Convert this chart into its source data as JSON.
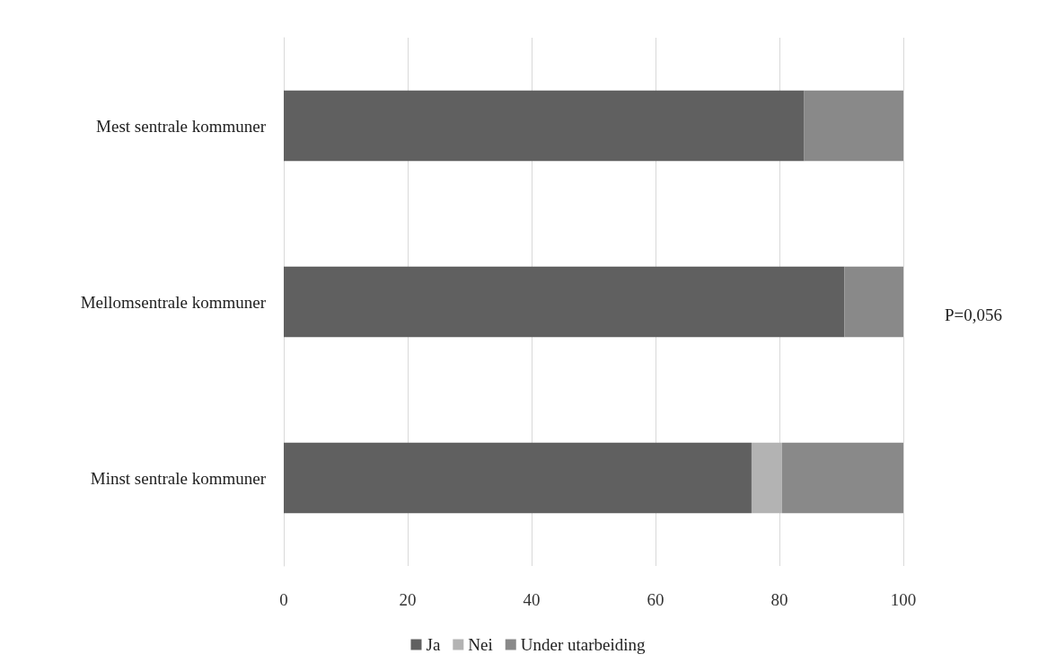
{
  "chart_data": {
    "type": "bar",
    "orientation": "horizontal",
    "stacked": true,
    "categories": [
      "Mest sentrale kommuner",
      "Mellomsentrale kommuner",
      "Minst sentrale kommuner"
    ],
    "series": [
      {
        "name": "Ja",
        "color": "#606060",
        "values": [
          84,
          90.5,
          75.5
        ]
      },
      {
        "name": "Nei",
        "color": "#b3b3b3",
        "values": [
          0,
          0,
          4.9
        ]
      },
      {
        "name": "Under utarbeiding",
        "color": "#898989",
        "values": [
          16,
          9.5,
          19.6
        ]
      }
    ],
    "xlim": [
      0,
      100
    ],
    "xticks": [
      0,
      20,
      40,
      60,
      80,
      100
    ],
    "grid": "x",
    "legend": "bottom",
    "annotations": [
      "P=0,056"
    ]
  }
}
